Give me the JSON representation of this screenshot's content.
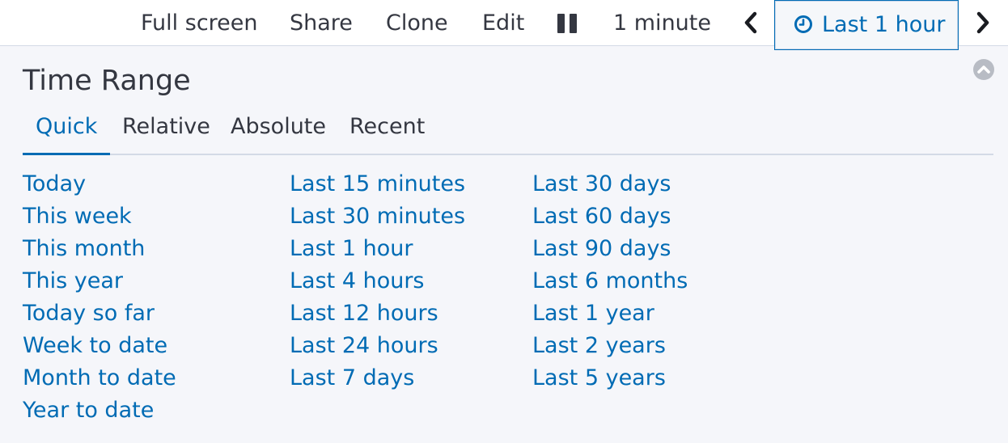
{
  "topbar": {
    "full_screen": "Full screen",
    "share": "Share",
    "clone": "Clone",
    "edit": "Edit",
    "refresh_interval": "1 minute",
    "time_picker_label": "Last 1 hour"
  },
  "panel": {
    "title": "Time Range",
    "tabs": [
      "Quick",
      "Relative",
      "Absolute",
      "Recent"
    ],
    "quick": {
      "col1": [
        "Today",
        "This week",
        "This month",
        "This year",
        "Today so far",
        "Week to date",
        "Month to date",
        "Year to date"
      ],
      "col2": [
        "Last 15 minutes",
        "Last 30 minutes",
        "Last 1 hour",
        "Last 4 hours",
        "Last 12 hours",
        "Last 24 hours",
        "Last 7 days"
      ],
      "col3": [
        "Last 30 days",
        "Last 60 days",
        "Last 90 days",
        "Last 6 months",
        "Last 1 year",
        "Last 2 years",
        "Last 5 years"
      ]
    }
  },
  "colors": {
    "link": "#006bb4",
    "text": "#343741",
    "background": "#f5f6fa",
    "border": "#d3dae6"
  },
  "icons": [
    "pause-icon",
    "chevron-left-icon",
    "clock-icon",
    "chevron-right-icon",
    "collapse-up-icon"
  ]
}
